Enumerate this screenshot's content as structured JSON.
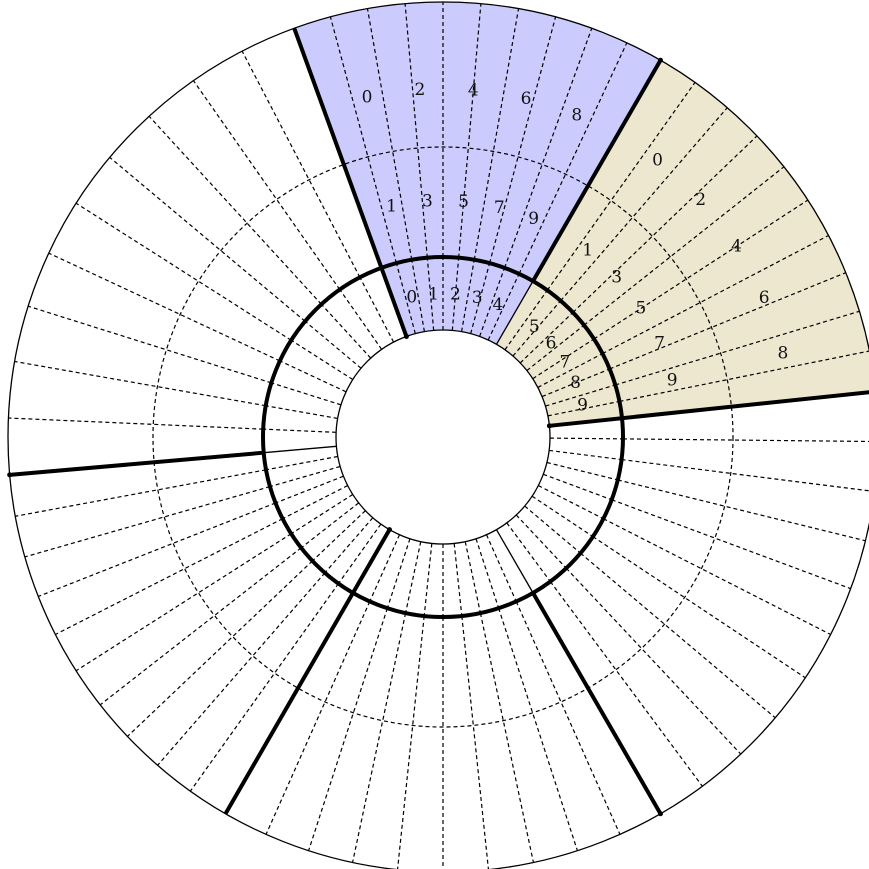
{
  "colors": {
    "sector_a": "#cccbfd",
    "sector_b": "#ede7cf",
    "line": "#000000",
    "background": "#ffffff"
  },
  "sector_a_labels": {
    "outer": [
      "0",
      "2",
      "4",
      "6",
      "8"
    ],
    "middle": [
      "1",
      "3",
      "5",
      "7",
      "9"
    ],
    "inner": [
      "0",
      "1",
      "2",
      "3",
      "4"
    ]
  },
  "sector_b_labels": {
    "outer": [
      "0",
      "2",
      "4",
      "6",
      "8"
    ],
    "middle": [
      "1",
      "3",
      "5",
      "7",
      "9"
    ],
    "inner": [
      "5",
      "6",
      "7",
      "8",
      "9"
    ]
  }
}
